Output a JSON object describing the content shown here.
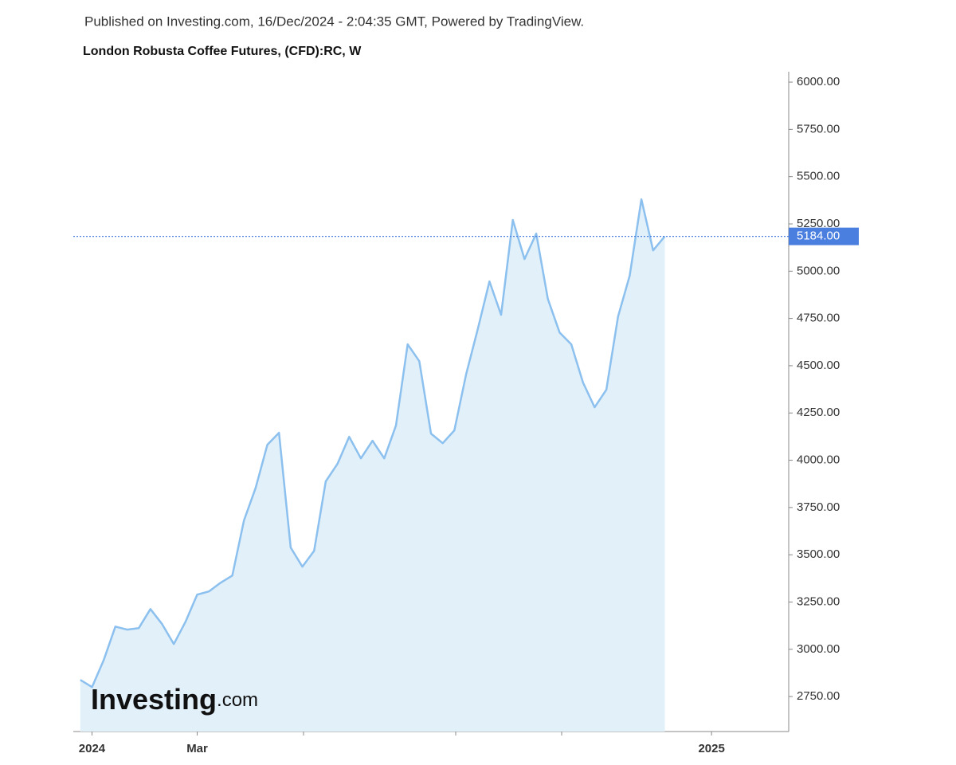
{
  "header": {
    "published": "Published on Investing.com, 16/Dec/2024 - 2:04:35 GMT, Powered by TradingView.",
    "title": "London Robusta Coffee Futures, (CFD):RC, W"
  },
  "chart_data": {
    "type": "area",
    "series": [
      {
        "name": "RC",
        "color": "#8cc0ee",
        "fill": "#e2f0fa",
        "values": [
          2838,
          2800,
          2943,
          3120,
          3104,
          3112,
          3213,
          3133,
          3028,
          3146,
          3289,
          3306,
          3352,
          3390,
          3681,
          3854,
          4082,
          4145,
          3538,
          3437,
          3521,
          3888,
          3981,
          4124,
          4010,
          4103,
          4010,
          4183,
          4613,
          4524,
          4141,
          4090,
          4158,
          4453,
          4693,
          4946,
          4769,
          5271,
          5064,
          5199,
          4853,
          4676,
          4613,
          4411,
          4280,
          4373,
          4760,
          4976,
          5380,
          5110,
          5184
        ],
        "value_labels": [
          null,
          null,
          null,
          null,
          null,
          null,
          null,
          null,
          null,
          null,
          null,
          null,
          null,
          null,
          null,
          null,
          null,
          null,
          null,
          null,
          null,
          null,
          null,
          null,
          null,
          null,
          null,
          null,
          null,
          null,
          null,
          null,
          null,
          null,
          null,
          null,
          null,
          null,
          null,
          null,
          null,
          null,
          null,
          null,
          null,
          null,
          null,
          null,
          null,
          null,
          "5184.00"
        ]
      }
    ],
    "last_line_color": "#4a7fe0",
    "xlim": [
      -0.6,
      60.6
    ],
    "xticks": [
      {
        "value": 1,
        "label": "2024"
      },
      {
        "value": 10,
        "label": "Mar"
      },
      {
        "value": 54,
        "label": "2025"
      }
    ],
    "ylim": [
      2565,
      6055
    ],
    "yticks": [
      {
        "value": 2750,
        "label": "2750.00"
      },
      {
        "value": 3000,
        "label": "3000.00"
      },
      {
        "value": 3250,
        "label": "3250.00"
      },
      {
        "value": 3500,
        "label": "3500.00"
      },
      {
        "value": 3750,
        "label": "3750.00"
      },
      {
        "value": 4000,
        "label": "4000.00"
      },
      {
        "value": 4250,
        "label": "4250.00"
      },
      {
        "value": 4500,
        "label": "4500.00"
      },
      {
        "value": 4750,
        "label": "4750.00"
      },
      {
        "value": 5000,
        "label": "5000.00"
      },
      {
        "value": 5250,
        "label": "5250.00"
      },
      {
        "value": 5500,
        "label": "5500.00"
      },
      {
        "value": 5750,
        "label": "5750.00"
      },
      {
        "value": 6000,
        "label": "6000.00"
      }
    ],
    "watermark": "Investing",
    "watermark_suffix": ".com"
  }
}
